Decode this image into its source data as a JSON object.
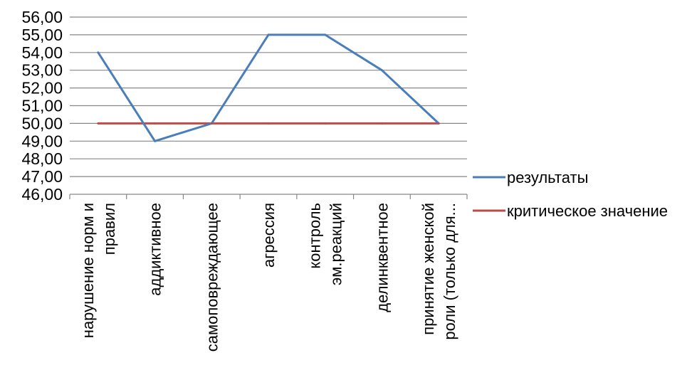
{
  "chart_data": {
    "type": "line",
    "categories": [
      [
        "нарушение норм и",
        "правил"
      ],
      [
        "аддиктивное"
      ],
      [
        "самоповреждающее"
      ],
      [
        "агрессия"
      ],
      [
        "контроль",
        "эм.реакций"
      ],
      [
        "делинквентное"
      ],
      [
        "принятие женской",
        "роли (только для..."
      ]
    ],
    "ylim": [
      46,
      56
    ],
    "ytick_step": 1,
    "ytick_labels": [
      "46,00",
      "47,00",
      "48,00",
      "49,00",
      "50,00",
      "51,00",
      "52,00",
      "53,00",
      "54,00",
      "55,00",
      "56,00"
    ],
    "grid": true,
    "legend_position": "right",
    "series": [
      {
        "name": "результаты",
        "color": "#4a7ebb",
        "values": [
          54,
          49,
          50,
          55,
          55,
          53,
          50
        ]
      },
      {
        "name": "критическое значение",
        "color": "#be4b48",
        "values": [
          50,
          50,
          50,
          50,
          50,
          50,
          50
        ]
      }
    ]
  }
}
